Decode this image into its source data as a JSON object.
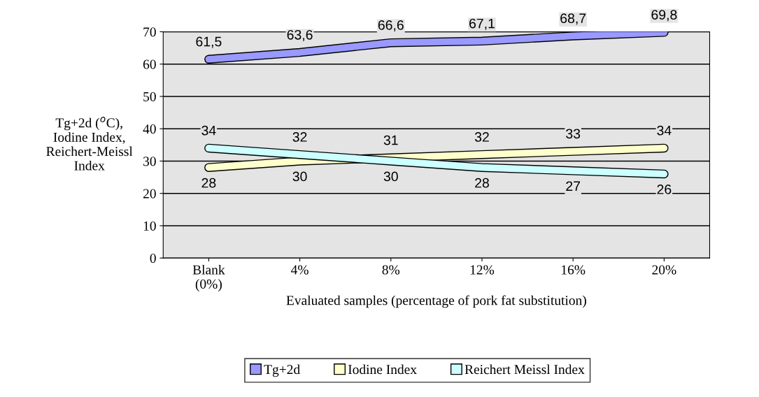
{
  "chart_data": {
    "type": "line",
    "xlabel": "Evaluated samples (percentage of pork fat substitution)",
    "ylabel": "Tg+2d ($^{o}$C),\nIodine Index,\nReichert-Meissl\nIndex",
    "categories": [
      "Blank\n(0%)",
      "4%",
      "8%",
      "12%",
      "16%",
      "20%"
    ],
    "ylim": [
      0,
      70
    ],
    "yticks": [
      0,
      10,
      20,
      30,
      40,
      50,
      60,
      70
    ],
    "grid": "y",
    "legend": "bottom",
    "marker": "none",
    "line_style": "solid",
    "series": [
      {
        "name": "Tg+2d",
        "color": "#9999ff",
        "values": [
          61.5,
          63.6,
          66.6,
          67.1,
          68.7,
          69.8
        ],
        "value_labels": [
          "61,5",
          "63,6",
          "66,6",
          "67,1",
          "68,7",
          "69,8"
        ]
      },
      {
        "name": "Iodine Index",
        "color": "#ffffcc",
        "values": [
          28,
          30,
          31,
          32,
          33,
          34
        ],
        "value_labels": [
          "28",
          "30",
          "31",
          "32",
          "33",
          "34"
        ]
      },
      {
        "name": "Reichert Meissl Index",
        "color": "#ccffff",
        "values": [
          34,
          32,
          30,
          28,
          27,
          26
        ],
        "value_labels": [
          "34",
          "32",
          "30",
          "28",
          "27",
          "26"
        ]
      }
    ]
  }
}
